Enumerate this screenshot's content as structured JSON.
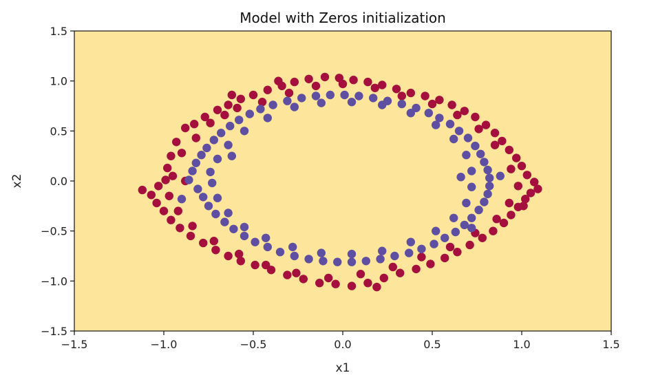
{
  "chart_data": {
    "type": "scatter",
    "title": "Model with Zeros initialization",
    "xlabel": "x1",
    "ylabel": "x2",
    "xlim": [
      -1.5,
      1.5
    ],
    "ylim": [
      -1.5,
      1.5
    ],
    "x_ticks": [
      "−1.5",
      "−1.0",
      "−0.5",
      "0.0",
      "0.5",
      "1.0",
      "1.5"
    ],
    "y_ticks": [
      "1.5",
      "1.0",
      "0.5",
      "0.0",
      "−0.5",
      "−1.0",
      "−1.5"
    ],
    "x_tick_values": [
      -1.5,
      -1.0,
      -0.5,
      0.0,
      0.5,
      1.0,
      1.5
    ],
    "y_tick_values": [
      1.5,
      1.0,
      0.5,
      0.0,
      -0.5,
      -1.0,
      -1.5
    ],
    "grid": false,
    "legend": "none",
    "background_color": "#fde69b",
    "series": [
      {
        "color": "#a50f3d",
        "points": [
          [
            -1.12,
            -0.09
          ],
          [
            -1.07,
            -0.14
          ],
          [
            -1.03,
            -0.05
          ],
          [
            -0.99,
            0.01
          ],
          [
            -0.98,
            0.13
          ],
          [
            -0.96,
            0.25
          ],
          [
            -0.93,
            0.39
          ],
          [
            -0.88,
            0.53
          ],
          [
            -0.83,
            0.57
          ],
          [
            -0.77,
            0.64
          ],
          [
            -0.7,
            0.71
          ],
          [
            -0.64,
            0.76
          ],
          [
            -0.57,
            0.82
          ],
          [
            -0.5,
            0.86
          ],
          [
            -0.42,
            0.91
          ],
          [
            -0.34,
            0.95
          ],
          [
            -0.27,
            0.99
          ],
          [
            -0.19,
            1.02
          ],
          [
            -0.1,
            1.04
          ],
          [
            -0.02,
            1.03
          ],
          [
            0.06,
            1.01
          ],
          [
            0.14,
            0.99
          ],
          [
            0.22,
            0.96
          ],
          [
            0.3,
            0.92
          ],
          [
            0.38,
            0.88
          ],
          [
            0.46,
            0.85
          ],
          [
            0.54,
            0.81
          ],
          [
            0.61,
            0.76
          ],
          [
            0.68,
            0.7
          ],
          [
            0.74,
            0.64
          ],
          [
            0.8,
            0.56
          ],
          [
            0.85,
            0.48
          ],
          [
            0.89,
            0.4
          ],
          [
            0.93,
            0.31
          ],
          [
            0.97,
            0.23
          ],
          [
            1.0,
            0.15
          ],
          [
            1.03,
            0.06
          ],
          [
            1.07,
            -0.01
          ],
          [
            1.09,
            -0.08
          ],
          [
            1.05,
            -0.12
          ],
          [
            1.02,
            -0.18
          ],
          [
            0.98,
            -0.26
          ],
          [
            0.94,
            -0.34
          ],
          [
            0.9,
            -0.42
          ],
          [
            0.84,
            -0.5
          ],
          [
            0.78,
            -0.57
          ],
          [
            0.71,
            -0.64
          ],
          [
            0.64,
            -0.71
          ],
          [
            0.57,
            -0.77
          ],
          [
            0.49,
            -0.83
          ],
          [
            0.41,
            -0.88
          ],
          [
            0.32,
            -0.92
          ],
          [
            0.23,
            -0.97
          ],
          [
            0.14,
            -1.02
          ],
          [
            0.05,
            -1.05
          ],
          [
            -0.04,
            -1.03
          ],
          [
            -0.13,
            -1.02
          ],
          [
            -0.22,
            -0.98
          ],
          [
            -0.31,
            -0.94
          ],
          [
            -0.4,
            -0.89
          ],
          [
            -0.49,
            -0.84
          ],
          [
            -0.57,
            -0.8
          ],
          [
            -0.64,
            -0.75
          ],
          [
            -0.71,
            -0.69
          ],
          [
            -0.78,
            -0.62
          ],
          [
            -0.85,
            -0.55
          ],
          [
            -0.91,
            -0.47
          ],
          [
            -0.96,
            -0.39
          ],
          [
            -1.0,
            -0.3
          ],
          [
            -1.04,
            -0.22
          ],
          [
            -0.95,
            0.05
          ],
          [
            -0.9,
            0.28
          ],
          [
            -0.82,
            0.43
          ],
          [
            -0.74,
            0.58
          ],
          [
            -0.66,
            0.66
          ],
          [
            -0.59,
            0.73
          ],
          [
            -0.45,
            0.79
          ],
          [
            -0.3,
            0.88
          ],
          [
            -0.15,
            0.95
          ],
          [
            0.0,
            0.97
          ],
          [
            0.18,
            0.93
          ],
          [
            0.33,
            0.85
          ],
          [
            0.5,
            0.77
          ],
          [
            0.64,
            0.66
          ],
          [
            0.76,
            0.52
          ],
          [
            0.85,
            0.36
          ],
          [
            0.94,
            0.12
          ],
          [
            0.98,
            -0.05
          ],
          [
            0.93,
            -0.22
          ],
          [
            0.86,
            -0.38
          ],
          [
            0.74,
            -0.52
          ],
          [
            0.6,
            -0.66
          ],
          [
            0.44,
            -0.76
          ],
          [
            0.28,
            -0.86
          ],
          [
            0.1,
            -0.93
          ],
          [
            -0.08,
            -0.97
          ],
          [
            -0.26,
            -0.92
          ],
          [
            -0.43,
            -0.84
          ],
          [
            -0.58,
            -0.73
          ],
          [
            -0.72,
            -0.6
          ],
          [
            -0.84,
            -0.45
          ],
          [
            -0.92,
            -0.3
          ],
          [
            -0.97,
            -0.15
          ],
          [
            -0.88,
            0.0
          ],
          [
            1.01,
            -0.25
          ],
          [
            -0.36,
            1.0
          ],
          [
            0.19,
            -1.06
          ],
          [
            -0.62,
            0.86
          ]
        ]
      },
      {
        "color": "#5e4fa2",
        "points": [
          [
            -0.86,
            0.01
          ],
          [
            -0.84,
            0.1
          ],
          [
            -0.82,
            0.18
          ],
          [
            -0.79,
            0.26
          ],
          [
            -0.76,
            0.33
          ],
          [
            -0.72,
            0.41
          ],
          [
            -0.68,
            0.48
          ],
          [
            -0.63,
            0.55
          ],
          [
            -0.58,
            0.61
          ],
          [
            -0.52,
            0.67
          ],
          [
            -0.46,
            0.72
          ],
          [
            -0.39,
            0.76
          ],
          [
            -0.31,
            0.8
          ],
          [
            -0.23,
            0.83
          ],
          [
            -0.15,
            0.85
          ],
          [
            -0.07,
            0.86
          ],
          [
            0.01,
            0.86
          ],
          [
            0.09,
            0.85
          ],
          [
            0.17,
            0.83
          ],
          [
            0.25,
            0.8
          ],
          [
            0.33,
            0.77
          ],
          [
            0.41,
            0.73
          ],
          [
            0.48,
            0.68
          ],
          [
            0.54,
            0.63
          ],
          [
            0.6,
            0.57
          ],
          [
            0.65,
            0.5
          ],
          [
            0.7,
            0.43
          ],
          [
            0.74,
            0.35
          ],
          [
            0.77,
            0.27
          ],
          [
            0.79,
            0.19
          ],
          [
            0.81,
            0.11
          ],
          [
            0.82,
            0.03
          ],
          [
            0.82,
            -0.05
          ],
          [
            0.81,
            -0.13
          ],
          [
            0.79,
            -0.21
          ],
          [
            0.76,
            -0.29
          ],
          [
            0.72,
            -0.37
          ],
          [
            0.68,
            -0.44
          ],
          [
            0.63,
            -0.51
          ],
          [
            0.57,
            -0.57
          ],
          [
            0.51,
            -0.63
          ],
          [
            0.44,
            -0.68
          ],
          [
            0.37,
            -0.72
          ],
          [
            0.29,
            -0.75
          ],
          [
            0.21,
            -0.78
          ],
          [
            0.13,
            -0.8
          ],
          [
            0.05,
            -0.81
          ],
          [
            -0.03,
            -0.81
          ],
          [
            -0.11,
            -0.8
          ],
          [
            -0.19,
            -0.78
          ],
          [
            -0.27,
            -0.75
          ],
          [
            -0.35,
            -0.71
          ],
          [
            -0.42,
            -0.66
          ],
          [
            -0.49,
            -0.61
          ],
          [
            -0.55,
            -0.55
          ],
          [
            -0.61,
            -0.48
          ],
          [
            -0.66,
            -0.41
          ],
          [
            -0.71,
            -0.33
          ],
          [
            -0.75,
            -0.25
          ],
          [
            -0.78,
            -0.16
          ],
          [
            -0.81,
            -0.08
          ],
          [
            -0.74,
            0.09
          ],
          [
            -0.7,
            0.22
          ],
          [
            -0.64,
            0.36
          ],
          [
            -0.55,
            0.5
          ],
          [
            -0.42,
            0.63
          ],
          [
            -0.27,
            0.74
          ],
          [
            -0.12,
            0.78
          ],
          [
            0.05,
            0.79
          ],
          [
            0.22,
            0.76
          ],
          [
            0.38,
            0.68
          ],
          [
            0.52,
            0.56
          ],
          [
            0.62,
            0.42
          ],
          [
            0.69,
            0.26
          ],
          [
            0.72,
            0.1
          ],
          [
            0.72,
            -0.06
          ],
          [
            0.69,
            -0.22
          ],
          [
            0.62,
            -0.37
          ],
          [
            0.52,
            -0.5
          ],
          [
            0.38,
            -0.61
          ],
          [
            0.22,
            -0.7
          ],
          [
            0.05,
            -0.73
          ],
          [
            -0.12,
            -0.72
          ],
          [
            -0.28,
            -0.66
          ],
          [
            -0.43,
            -0.57
          ],
          [
            -0.55,
            -0.46
          ],
          [
            -0.64,
            -0.32
          ],
          [
            -0.7,
            -0.17
          ],
          [
            -0.73,
            -0.02
          ],
          [
            -0.9,
            -0.18
          ],
          [
            0.88,
            0.05
          ],
          [
            -0.62,
            0.25
          ],
          [
            0.66,
            0.04
          ],
          [
            0.72,
            -0.47
          ]
        ]
      }
    ]
  }
}
